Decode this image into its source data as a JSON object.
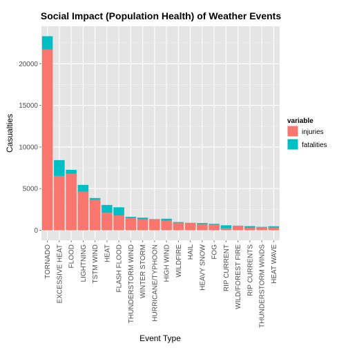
{
  "chart_data": {
    "type": "bar",
    "stacked": true,
    "title": "Social Impact (Population Health) of Weather Events",
    "xlabel": "Event Type",
    "ylabel": "Casualties",
    "categories": [
      "TORNADO",
      "EXCESSIVE HEAT",
      "FLOOD",
      "LIGHTNING",
      "TSTM WIND",
      "HEAT",
      "FLASH FLOOD",
      "THUNDERSTORM WIND",
      "WINTER STORM",
      "HURRICANE/TYPHOON",
      "HIGH WIND",
      "WILDFIRE",
      "HAIL",
      "HEAVY SNOW",
      "FOG",
      "RIP CURRENT",
      "WILD/FOREST FIRE",
      "RIP CURRENTS",
      "THUNDERSTORM WINDS",
      "HEAT WAVE"
    ],
    "series": [
      {
        "name": "injuries",
        "color": "#F8766D",
        "values": [
          21700,
          6525,
          6790,
          4630,
          3630,
          2100,
          1780,
          1490,
          1320,
          1280,
          1140,
          910,
          900,
          740,
          730,
          230,
          550,
          300,
          340,
          310
        ]
      },
      {
        "name": "fatalities",
        "color": "#00BFC4",
        "values": [
          1600,
          1900,
          470,
          820,
          240,
          940,
          980,
          130,
          200,
          60,
          250,
          80,
          10,
          130,
          60,
          370,
          10,
          200,
          70,
          170
        ]
      }
    ],
    "yticks": [
      0,
      5000,
      10000,
      15000,
      20000
    ],
    "ylim": [
      -1200,
      24500
    ],
    "grid": true,
    "legend": {
      "title": "variable",
      "position": "right",
      "entries": [
        "injuries",
        "fatalities"
      ]
    }
  }
}
